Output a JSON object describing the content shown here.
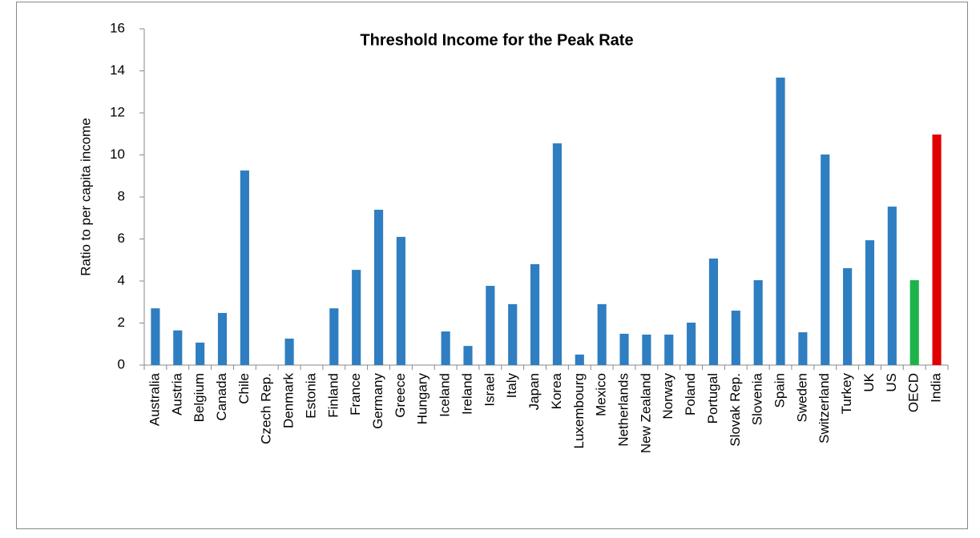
{
  "chart_data": {
    "type": "bar",
    "title": "Threshold Income for the Peak Rate",
    "y_label": "Ratio to per capita income",
    "categories": [
      "Australia",
      "Austria",
      "Belgium",
      "Canada",
      "Chile",
      "Czech Rep.",
      "Denmark",
      "Estonia",
      "Finland",
      "France",
      "Germany",
      "Greece",
      "Hungary",
      "Iceland",
      "Ireland",
      "Israel",
      "Italy",
      "Japan",
      "Korea",
      "Luxembourg",
      "Mexico",
      "Netherlands",
      "New Zealand",
      "Norway",
      "Poland",
      "Portugal",
      "Slovak Rep.",
      "Slovenia",
      "Spain",
      "Sweden",
      "Switzerland",
      "Turkey",
      "UK",
      "US",
      "OECD",
      "India"
    ],
    "values": [
      2.7,
      1.65,
      1.07,
      2.48,
      9.26,
      0,
      1.26,
      0,
      2.7,
      4.53,
      7.39,
      6.1,
      0,
      1.6,
      0.91,
      3.77,
      2.9,
      4.8,
      10.55,
      0.5,
      2.9,
      1.49,
      1.45,
      1.45,
      2.02,
      5.07,
      2.59,
      4.04,
      13.68,
      1.56,
      10.02,
      4.61,
      5.94,
      7.54,
      4.04,
      10.97
    ],
    "colors": [
      "#2e7ec1",
      "#2e7ec1",
      "#2e7ec1",
      "#2e7ec1",
      "#2e7ec1",
      "#2e7ec1",
      "#2e7ec1",
      "#2e7ec1",
      "#2e7ec1",
      "#2e7ec1",
      "#2e7ec1",
      "#2e7ec1",
      "#2e7ec1",
      "#2e7ec1",
      "#2e7ec1",
      "#2e7ec1",
      "#2e7ec1",
      "#2e7ec1",
      "#2e7ec1",
      "#2e7ec1",
      "#2e7ec1",
      "#2e7ec1",
      "#2e7ec1",
      "#2e7ec1",
      "#2e7ec1",
      "#2e7ec1",
      "#2e7ec1",
      "#2e7ec1",
      "#2e7ec1",
      "#2e7ec1",
      "#2e7ec1",
      "#2e7ec1",
      "#2e7ec1",
      "#2e7ec1",
      "#1db34a",
      "#e00000"
    ],
    "ylim": [
      0,
      16
    ],
    "yticks": [
      0,
      2,
      4,
      6,
      8,
      10,
      12,
      14,
      16
    ],
    "grid": false
  }
}
